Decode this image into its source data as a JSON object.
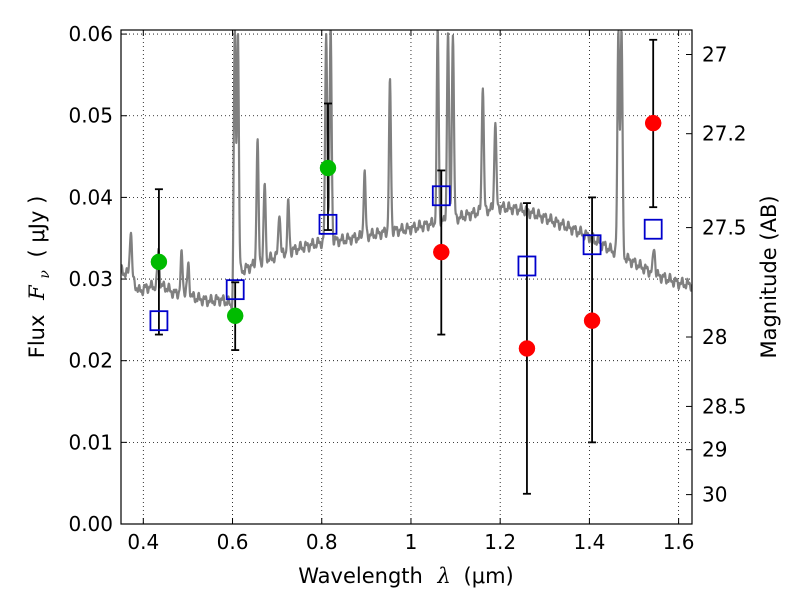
{
  "chart_data": {
    "type": "scatter",
    "title": "",
    "xlabel_text": "Wavelength",
    "xlabel_symbol": "λ",
    "xlabel_unit": "(μm)",
    "ylabel_text": "Flux",
    "ylabel_symbol": "F",
    "ylabel_subscript": "ν",
    "ylabel_unit": "( μJy )",
    "y2label": "Magnitude (AB)",
    "xlim": [
      0.35,
      1.63
    ],
    "ylim": [
      0.0,
      0.0605
    ],
    "grid": true,
    "x_ticks": [
      {
        "value": 0.4,
        "label": "0.4"
      },
      {
        "value": 0.6,
        "label": "0.6"
      },
      {
        "value": 0.8,
        "label": "0.8"
      },
      {
        "value": 1.0,
        "label": "1"
      },
      {
        "value": 1.2,
        "label": "1.2"
      },
      {
        "value": 1.4,
        "label": "1.4"
      },
      {
        "value": 1.6,
        "label": "1.6"
      }
    ],
    "y_ticks": [
      {
        "value": 0.0,
        "label": "0.00"
      },
      {
        "value": 0.01,
        "label": "0.01"
      },
      {
        "value": 0.02,
        "label": "0.02"
      },
      {
        "value": 0.03,
        "label": "0.03"
      },
      {
        "value": 0.04,
        "label": "0.04"
      },
      {
        "value": 0.05,
        "label": "0.05"
      },
      {
        "value": 0.06,
        "label": "0.06"
      }
    ],
    "y2_ticks": [
      {
        "flux": 0.0575,
        "label": "27"
      },
      {
        "flux": 0.0478,
        "label": "27.2"
      },
      {
        "flux": 0.0363,
        "label": "27.5"
      },
      {
        "flux": 0.0229,
        "label": "28"
      },
      {
        "flux": 0.0144,
        "label": "28.5"
      },
      {
        "flux": 0.0091,
        "label": "29"
      },
      {
        "flux": 0.0036,
        "label": "30"
      }
    ],
    "observed_points": [
      {
        "x": 0.435,
        "y": 0.0321,
        "yerr_low": 0.0232,
        "yerr_high": 0.041,
        "color": "#00bb00"
      },
      {
        "x": 0.606,
        "y": 0.0255,
        "yerr_low": 0.0213,
        "yerr_high": 0.0296,
        "color": "#00bb00"
      },
      {
        "x": 0.814,
        "y": 0.0436,
        "yerr_low": 0.036,
        "yerr_high": 0.0515,
        "color": "#00bb00"
      },
      {
        "x": 1.068,
        "y": 0.0333,
        "yerr_low": 0.0232,
        "yerr_high": 0.0433,
        "color": "#ff0000"
      },
      {
        "x": 1.26,
        "y": 0.0215,
        "yerr_low": 0.0037,
        "yerr_high": 0.0393,
        "color": "#ff0000"
      },
      {
        "x": 1.406,
        "y": 0.0249,
        "yerr_low": 0.01,
        "yerr_high": 0.04,
        "color": "#ff0000"
      },
      {
        "x": 1.543,
        "y": 0.0491,
        "yerr_low": 0.0388,
        "yerr_high": 0.0593,
        "color": "#ff0000"
      }
    ],
    "model_points": [
      {
        "x": 0.435,
        "y": 0.0249
      },
      {
        "x": 0.606,
        "y": 0.0287
      },
      {
        "x": 0.814,
        "y": 0.0367
      },
      {
        "x": 1.068,
        "y": 0.0402
      },
      {
        "x": 1.26,
        "y": 0.0316
      },
      {
        "x": 1.406,
        "y": 0.0342
      },
      {
        "x": 1.543,
        "y": 0.0361
      }
    ],
    "spectrum_continuum": [
      [
        0.35,
        0.031
      ],
      [
        0.37,
        0.0305
      ],
      [
        0.39,
        0.0285
      ],
      [
        0.41,
        0.029
      ],
      [
        0.43,
        0.0292
      ],
      [
        0.45,
        0.029
      ],
      [
        0.47,
        0.0282
      ],
      [
        0.49,
        0.0285
      ],
      [
        0.51,
        0.0278
      ],
      [
        0.53,
        0.0275
      ],
      [
        0.55,
        0.0273
      ],
      [
        0.57,
        0.0275
      ],
      [
        0.59,
        0.0272
      ],
      [
        0.6,
        0.0265
      ],
      [
        0.62,
        0.031
      ],
      [
        0.65,
        0.0318
      ],
      [
        0.7,
        0.0328
      ],
      [
        0.75,
        0.0338
      ],
      [
        0.8,
        0.0345
      ],
      [
        0.85,
        0.0348
      ],
      [
        0.9,
        0.0353
      ],
      [
        0.95,
        0.0358
      ],
      [
        1.0,
        0.0362
      ],
      [
        1.05,
        0.0368
      ],
      [
        1.1,
        0.0374
      ],
      [
        1.15,
        0.0382
      ],
      [
        1.2,
        0.0388
      ],
      [
        1.25,
        0.0385
      ],
      [
        1.3,
        0.0375
      ],
      [
        1.35,
        0.0364
      ],
      [
        1.4,
        0.0352
      ],
      [
        1.45,
        0.0335
      ],
      [
        1.5,
        0.032
      ],
      [
        1.55,
        0.0305
      ],
      [
        1.6,
        0.0295
      ],
      [
        1.63,
        0.0293
      ]
    ],
    "spectrum_lines": [
      {
        "x": 0.372,
        "peak": 0.0362
      },
      {
        "x": 0.434,
        "peak": 0.0335
      },
      {
        "x": 0.486,
        "peak": 0.033
      },
      {
        "x": 0.501,
        "peak": 0.0318
      },
      {
        "x": 0.605,
        "peak": 0.0605
      },
      {
        "x": 0.612,
        "peak": 0.0605
      },
      {
        "x": 0.656,
        "peak": 0.047
      },
      {
        "x": 0.672,
        "peak": 0.0415
      },
      {
        "x": 0.705,
        "peak": 0.0384
      },
      {
        "x": 0.725,
        "peak": 0.0392
      },
      {
        "x": 0.81,
        "peak": 0.0605
      },
      {
        "x": 0.82,
        "peak": 0.0605
      },
      {
        "x": 0.896,
        "peak": 0.043
      },
      {
        "x": 0.953,
        "peak": 0.054
      },
      {
        "x": 1.06,
        "peak": 0.0605
      },
      {
        "x": 1.083,
        "peak": 0.0605
      },
      {
        "x": 1.094,
        "peak": 0.0605
      },
      {
        "x": 1.161,
        "peak": 0.054
      },
      {
        "x": 1.189,
        "peak": 0.0495
      },
      {
        "x": 1.465,
        "peak": 0.0605
      },
      {
        "x": 1.472,
        "peak": 0.0605
      },
      {
        "x": 1.545,
        "peak": 0.034
      }
    ],
    "colors": {
      "spectrum": "#808080",
      "model_marker": "#0000cc",
      "error_bar": "#000000",
      "grid": "#000000"
    }
  }
}
